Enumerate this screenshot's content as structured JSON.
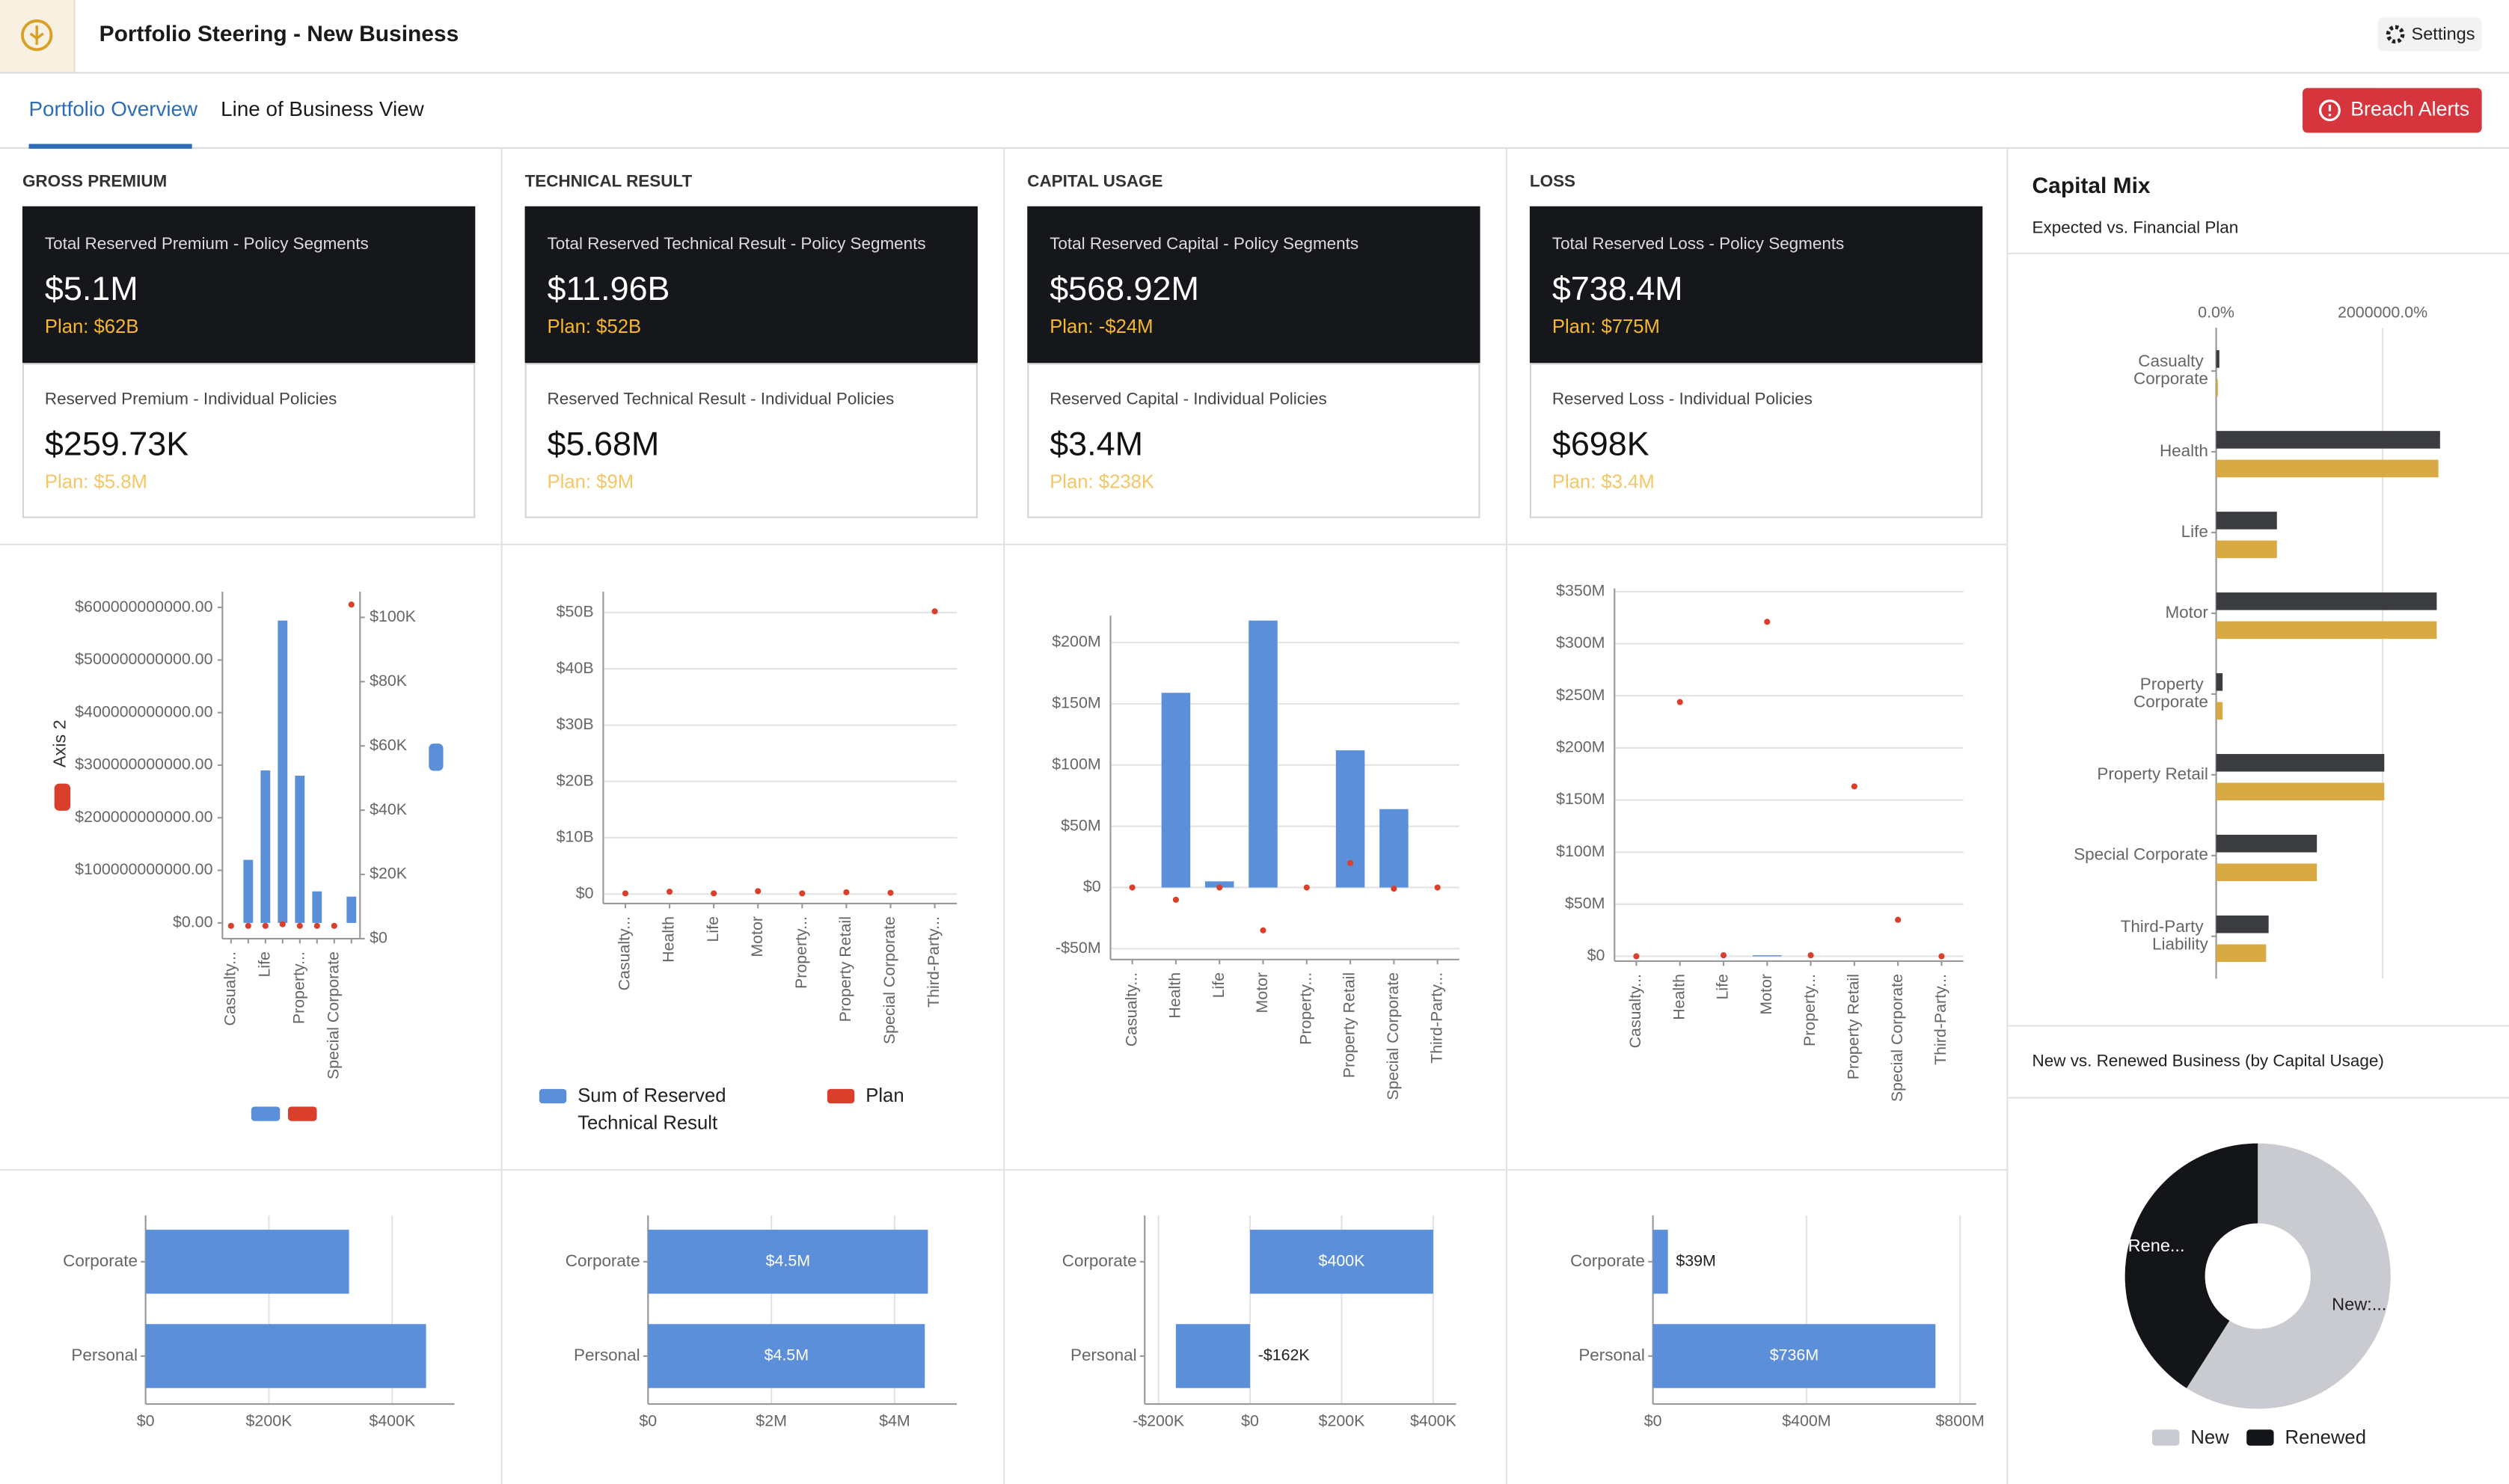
{
  "header": {
    "title": "Portfolio Steering - New Business",
    "settings": "Settings"
  },
  "tabs": [
    "Portfolio Overview",
    "Line of Business View"
  ],
  "breach_alerts": "Breach Alerts",
  "kpis": [
    {
      "section": "GROSS PREMIUM",
      "headline": {
        "label": "Total Reserved Premium - Policy Segments",
        "value": "$5.1M",
        "plan": "Plan: $62B"
      },
      "detail": {
        "label": "Reserved Premium - Individual Policies",
        "value": "$259.73K",
        "plan": "Plan: $5.8M"
      }
    },
    {
      "section": "TECHNICAL RESULT",
      "headline": {
        "label": "Total Reserved Technical Result - Policy Segments",
        "value": "$11.96B",
        "plan": "Plan: $52B"
      },
      "detail": {
        "label": "Reserved Technical Result - Individual Policies",
        "value": "$5.68M",
        "plan": "Plan: $9M"
      }
    },
    {
      "section": "CAPITAL USAGE",
      "headline": {
        "label": "Total Reserved Capital - Policy Segments",
        "value": "$568.92M",
        "plan": "Plan: -$24M"
      },
      "detail": {
        "label": "Reserved Capital - Individual Policies",
        "value": "$3.4M",
        "plan": "Plan: $238K"
      }
    },
    {
      "section": "LOSS",
      "headline": {
        "label": "Total Reserved Loss - Policy Segments",
        "value": "$738.4M",
        "plan": "Plan: $775M"
      },
      "detail": {
        "label": "Reserved Loss - Individual Policies",
        "value": "$698K",
        "plan": "Plan: $3.4M"
      }
    }
  ],
  "chart_data": [
    {
      "type": "bar",
      "categories": [
        "Casualty...",
        null,
        "Life",
        null,
        "Property...",
        null,
        "Special Corporate",
        null
      ],
      "series": [
        {
          "color": "#5b8fd9",
          "mark": "bar",
          "values": [
            0,
            120000000000,
            290000000000,
            575000000000,
            280000000000,
            60000000000,
            0,
            50000000000
          ]
        },
        {
          "color": "#d93f2a",
          "mark": "point",
          "axis": "y2",
          "values": [
            4000,
            4000,
            4000,
            4500,
            4000,
            4000,
            4000,
            104000
          ]
        }
      ],
      "ylim": [
        -30000000000,
        630000000000
      ],
      "yticks": [
        {
          "value": 0,
          "label": "$0.00"
        },
        {
          "value": 100000000000,
          "label": "$100000000000.00"
        },
        {
          "value": 200000000000,
          "label": "$200000000000.00"
        },
        {
          "value": 300000000000,
          "label": "$300000000000.00"
        },
        {
          "value": 400000000000,
          "label": "$400000000000.00"
        },
        {
          "value": 500000000000,
          "label": "$500000000000.00"
        },
        {
          "value": 600000000000,
          "label": "$600000000000.00"
        }
      ],
      "y2lim": [
        0,
        108000
      ],
      "y2ticks": [
        {
          "value": 0,
          "label": "$0"
        },
        {
          "value": 20000,
          "label": "$20K"
        },
        {
          "value": 40000,
          "label": "$40K"
        },
        {
          "value": 60000,
          "label": "$60K"
        },
        {
          "value": 80000,
          "label": "$80K"
        },
        {
          "value": 100000,
          "label": "$100K"
        }
      ],
      "axis_label": "Axis 2",
      "grid": false
    },
    {
      "type": "bar",
      "categories": [
        "Casualty...",
        "Health",
        "Life",
        "Motor",
        "Property...",
        "Property Retail",
        "Special Corporate",
        "Third-Party..."
      ],
      "series": [
        {
          "name": "Sum of Reserved Technical Result",
          "color": "#5b8fd9",
          "mark": "bar",
          "values": [
            0,
            0,
            0,
            0,
            0,
            0,
            0,
            0
          ]
        },
        {
          "name": "Plan",
          "color": "#d93f2a",
          "mark": "point",
          "values": [
            0.1,
            0.4,
            0.1,
            0.5,
            0.1,
            0.3,
            0.2,
            50.2
          ]
        }
      ],
      "ylim": [
        -1.7,
        53.7
      ],
      "yticks": [
        {
          "value": 0,
          "label": "$0"
        },
        {
          "value": 10,
          "label": "$10B"
        },
        {
          "value": 20,
          "label": "$20B"
        },
        {
          "value": 30,
          "label": "$30B"
        },
        {
          "value": 40,
          "label": "$40B"
        },
        {
          "value": 50,
          "label": "$50B"
        }
      ],
      "grid": true
    },
    {
      "type": "bar",
      "categories": [
        "Casualty...",
        "Health",
        "Life",
        "Motor",
        "Property...",
        "Property Retail",
        "Special Corporate",
        "Third-Party..."
      ],
      "series": [
        {
          "color": "#5b8fd9",
          "mark": "bar",
          "values": [
            0,
            159,
            5,
            218,
            0,
            112,
            64,
            0
          ]
        },
        {
          "color": "#d93f2a",
          "mark": "point",
          "values": [
            0,
            -10,
            0,
            -35,
            0,
            20,
            -1,
            0
          ]
        }
      ],
      "ylim": [
        -58.8,
        222
      ],
      "yticks": [
        {
          "value": -50,
          "label": "-$50M"
        },
        {
          "value": 0,
          "label": "$0"
        },
        {
          "value": 50,
          "label": "$50M"
        },
        {
          "value": 100,
          "label": "$100M"
        },
        {
          "value": 150,
          "label": "$150M"
        },
        {
          "value": 200,
          "label": "$200M"
        }
      ],
      "grid": true
    },
    {
      "type": "bar",
      "categories": [
        "Casualty...",
        "Health",
        "Life",
        "Motor",
        "Property...",
        "Property Retail",
        "Special Corporate",
        "Third-Party..."
      ],
      "series": [
        {
          "color": "#5b8fd9",
          "mark": "bar",
          "values": [
            0,
            0,
            0,
            1,
            0,
            0,
            0,
            0
          ]
        },
        {
          "color": "#d93f2a",
          "mark": "point",
          "values": [
            0,
            244,
            1,
            321,
            1,
            163,
            35,
            0
          ]
        }
      ],
      "ylim": [
        -4.6,
        353
      ],
      "yticks": [
        {
          "value": 0,
          "label": "$0"
        },
        {
          "value": 50,
          "label": "$50M"
        },
        {
          "value": 100,
          "label": "$100M"
        },
        {
          "value": 150,
          "label": "$150M"
        },
        {
          "value": 200,
          "label": "$200M"
        },
        {
          "value": 250,
          "label": "$250M"
        },
        {
          "value": 300,
          "label": "$300M"
        },
        {
          "value": 350,
          "label": "$350M"
        }
      ],
      "grid": true
    },
    {
      "type": "hbar",
      "categories": [
        "Corporate",
        "Personal"
      ],
      "series": [
        {
          "color": "#5b8fd9",
          "values": [
            330,
            455
          ]
        }
      ],
      "xlim": [
        0,
        501
      ],
      "xticks": [
        {
          "value": 0,
          "label": "$0"
        },
        {
          "value": 200,
          "label": "$200K"
        },
        {
          "value": 400,
          "label": "$400K"
        }
      ],
      "grid": true
    },
    {
      "type": "hbar",
      "categories": [
        "Corporate",
        "Personal"
      ],
      "series": [
        {
          "color": "#5b8fd9",
          "values": [
            4.54,
            4.49
          ],
          "value_labels": [
            "$4.5M",
            "$4.5M"
          ]
        }
      ],
      "xlim": [
        0,
        5.01
      ],
      "xticks": [
        {
          "value": 0,
          "label": "$0"
        },
        {
          "value": 2,
          "label": "$2M"
        },
        {
          "value": 4,
          "label": "$4M"
        }
      ],
      "grid": true
    },
    {
      "type": "hbar",
      "categories": [
        "Corporate",
        "Personal"
      ],
      "series": [
        {
          "color": "#5b8fd9",
          "values": [
            400,
            -162
          ],
          "value_labels": [
            "$400K",
            "-$162K"
          ]
        }
      ],
      "xlim": [
        -230,
        450
      ],
      "xticks": [
        {
          "value": -200,
          "label": "-$200K"
        },
        {
          "value": 0,
          "label": "$0"
        },
        {
          "value": 200,
          "label": "$200K"
        },
        {
          "value": 400,
          "label": "$400K"
        }
      ],
      "grid": true
    },
    {
      "type": "hbar",
      "categories": [
        "Corporate",
        "Personal"
      ],
      "series": [
        {
          "color": "#5b8fd9",
          "values": [
            39,
            736
          ],
          "value_labels": [
            "$39M",
            "$736M"
          ]
        }
      ],
      "xlim": [
        0,
        842
      ],
      "xticks": [
        {
          "value": 0,
          "label": "$0"
        },
        {
          "value": 400,
          "label": "$400M"
        },
        {
          "value": 800,
          "label": "$800M"
        }
      ],
      "grid": true
    },
    {
      "type": "hbar",
      "title": "Capital Mix",
      "subtitle": "Expected vs. Financial Plan",
      "categories": [
        "Casualty Corporate",
        "Health",
        "Life",
        "Motor",
        "Property Corporate",
        "Property Retail",
        "Special Corporate",
        "Third-Party Liability"
      ],
      "series": [
        {
          "color": "#3b3c40",
          "values": [
            38000,
            2690000,
            730000,
            2650000,
            77000,
            2020000,
            1210000,
            630000
          ]
        },
        {
          "color": "#d9a943",
          "values": [
            20000,
            2670000,
            730000,
            2650000,
            77000,
            2020000,
            1210000,
            600000
          ]
        }
      ],
      "xlim": [
        0,
        2980000
      ],
      "xticks": [
        {
          "value": 0,
          "label": "0.0%"
        },
        {
          "value": 2000000,
          "label": "2000000.0%"
        }
      ],
      "grid": true,
      "tick_position": "top"
    },
    {
      "type": "pie",
      "title": "New vs. Renewed Business (by Capital Usage)",
      "donut": true,
      "categories": [
        "New",
        "Renewed"
      ],
      "values": [
        59,
        41
      ],
      "colors": [
        "#c9cbd1",
        "#141518"
      ],
      "slice_labels": [
        "New:...",
        "Rene..."
      ],
      "legend": "bottom"
    }
  ]
}
